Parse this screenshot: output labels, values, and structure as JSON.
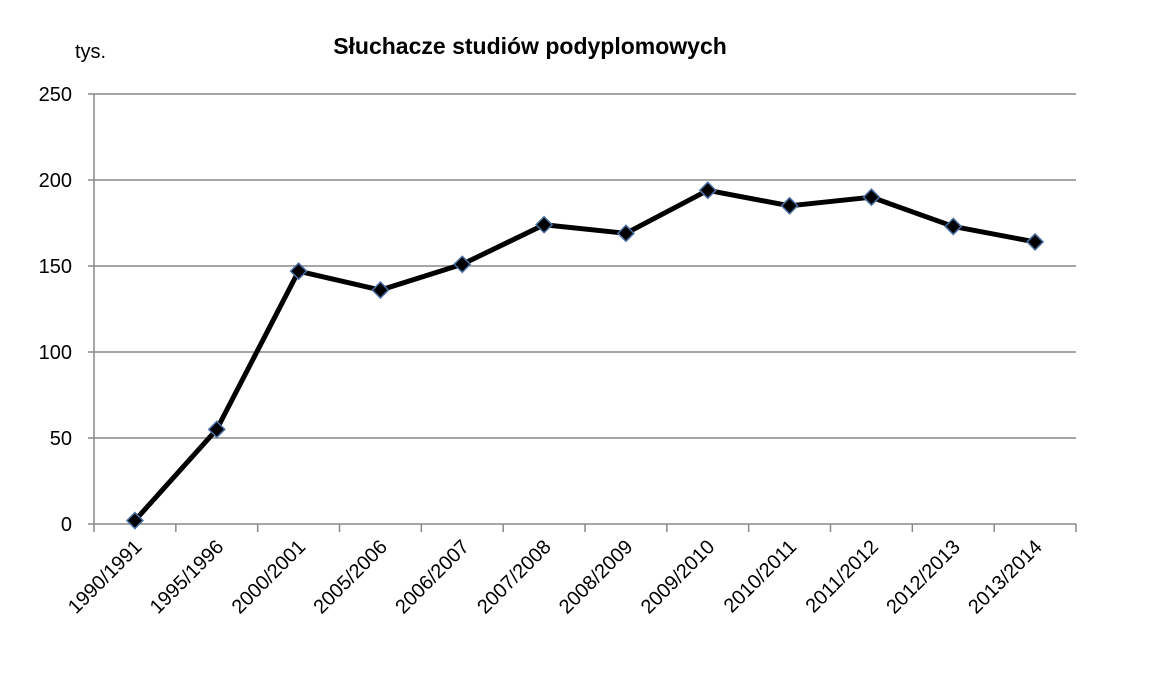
{
  "chart_data": {
    "type": "line",
    "title": "Słuchacze studiów podyplomowych",
    "y_label": "tys.",
    "categories": [
      "1990/1991",
      "1995/1996",
      "2000/2001",
      "2005/2006",
      "2006/2007",
      "2007/2008",
      "2008/2009",
      "2009/2010",
      "2010/2011",
      "2011/2012",
      "2012/2013",
      "2013/2014"
    ],
    "series": [
      {
        "name": "Słuchacze",
        "color": "#000000",
        "values": [
          2,
          55,
          147,
          136,
          151,
          174,
          169,
          194,
          185,
          190,
          173,
          164
        ]
      }
    ],
    "ylim": [
      0,
      250
    ],
    "yticks": [
      0,
      50,
      100,
      150,
      200,
      250
    ],
    "grid": true,
    "legend": false
  }
}
